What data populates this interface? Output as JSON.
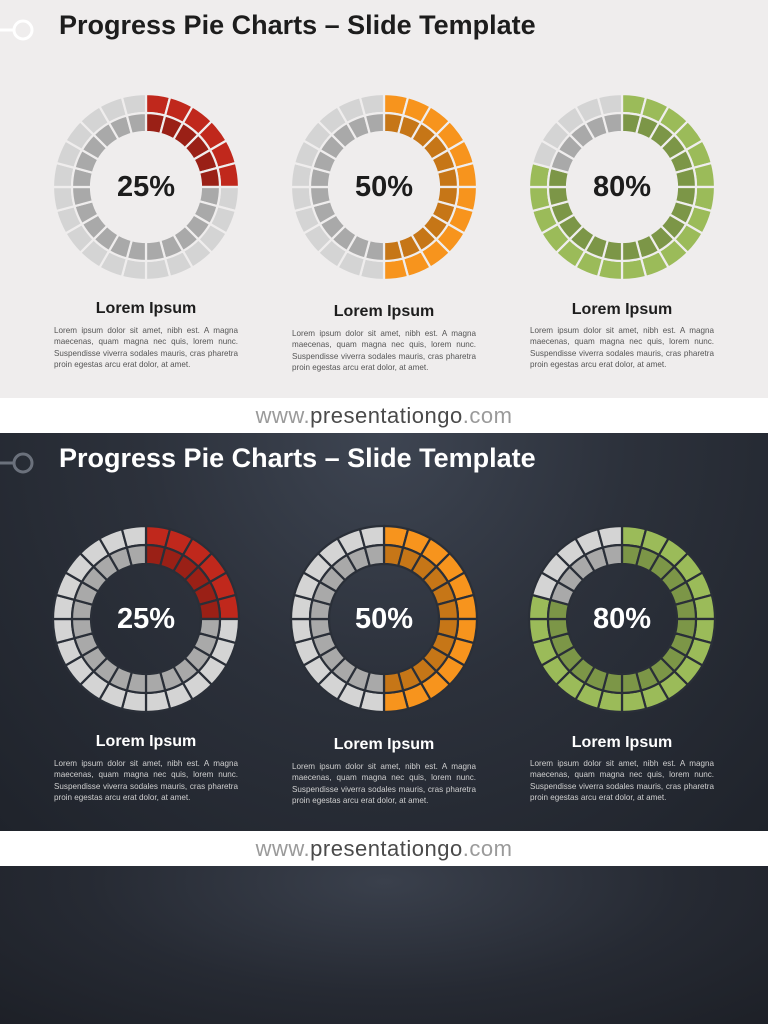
{
  "slides": [
    {
      "theme": "light",
      "title": "Progress Pie Charts – Slide Template",
      "items": [
        {
          "heading": "Lorem Ipsum",
          "body": "Lorem ipsum dolor sit amet, nibh est. A magna maecenas, quam magna nec quis, lorem nunc. Suspendisse viverra sodales mauris, cras pharetra proin egestas arcu erat dolor, at amet."
        },
        {
          "heading": "Lorem Ipsum",
          "body": "Lorem ipsum dolor sit amet, nibh est. A magna maecenas, quam magna nec quis, lorem nunc. Suspendisse viverra sodales mauris, cras pharetra proin egestas arcu erat dolor, at amet."
        },
        {
          "heading": "Lorem Ipsum",
          "body": "Lorem ipsum dolor sit amet, nibh est. A magna maecenas, quam magna nec quis, lorem nunc. Suspendisse viverra sodales mauris, cras pharetra proin egestas arcu erat dolor, at amet."
        }
      ]
    },
    {
      "theme": "dark",
      "title": "Progress Pie Charts – Slide Template",
      "items": [
        {
          "heading": "Lorem Ipsum",
          "body": "Lorem ipsum dolor sit amet, nibh est. A magna maecenas, quam magna nec quis, lorem nunc. Suspendisse viverra sodales mauris, cras pharetra proin egestas arcu erat dolor, at amet."
        },
        {
          "heading": "Lorem Ipsum",
          "body": "Lorem ipsum dolor sit amet, nibh est. A magna maecenas, quam magna nec quis, lorem nunc. Suspendisse viverra sodales mauris, cras pharetra proin egestas arcu erat dolor, at amet."
        },
        {
          "heading": "Lorem Ipsum",
          "body": "Lorem ipsum dolor sit amet, nibh est. A magna maecenas, quam magna nec quis, lorem nunc. Suspendisse viverra sodales mauris, cras pharetra proin egestas arcu erat dolor, at amet."
        }
      ]
    }
  ],
  "footer": {
    "www": "www.",
    "domain": "presentationgo",
    "com": ".com"
  },
  "colors": {
    "red": "#c0281c",
    "orange": "#f7941d",
    "green": "#9bbb59",
    "grey_outer": "#d4d4d4",
    "grey_inner": "#a9a9a9",
    "light_background": "#efeded",
    "dark_background": "#2c313b"
  },
  "chart_data": [
    {
      "type": "pie",
      "slide": "light",
      "value": 25,
      "label": "25%",
      "segments": 24,
      "color": "#c0281c"
    },
    {
      "type": "pie",
      "slide": "light",
      "value": 50,
      "label": "50%",
      "segments": 24,
      "color": "#f7941d"
    },
    {
      "type": "pie",
      "slide": "light",
      "value": 80,
      "label": "80%",
      "segments": 24,
      "color": "#9bbb59"
    },
    {
      "type": "pie",
      "slide": "dark",
      "value": 25,
      "label": "25%",
      "segments": 24,
      "color": "#c0281c"
    },
    {
      "type": "pie",
      "slide": "dark",
      "value": 50,
      "label": "50%",
      "segments": 24,
      "color": "#f7941d"
    },
    {
      "type": "pie",
      "slide": "dark",
      "value": 80,
      "label": "80%",
      "segments": 24,
      "color": "#9bbb59"
    }
  ]
}
